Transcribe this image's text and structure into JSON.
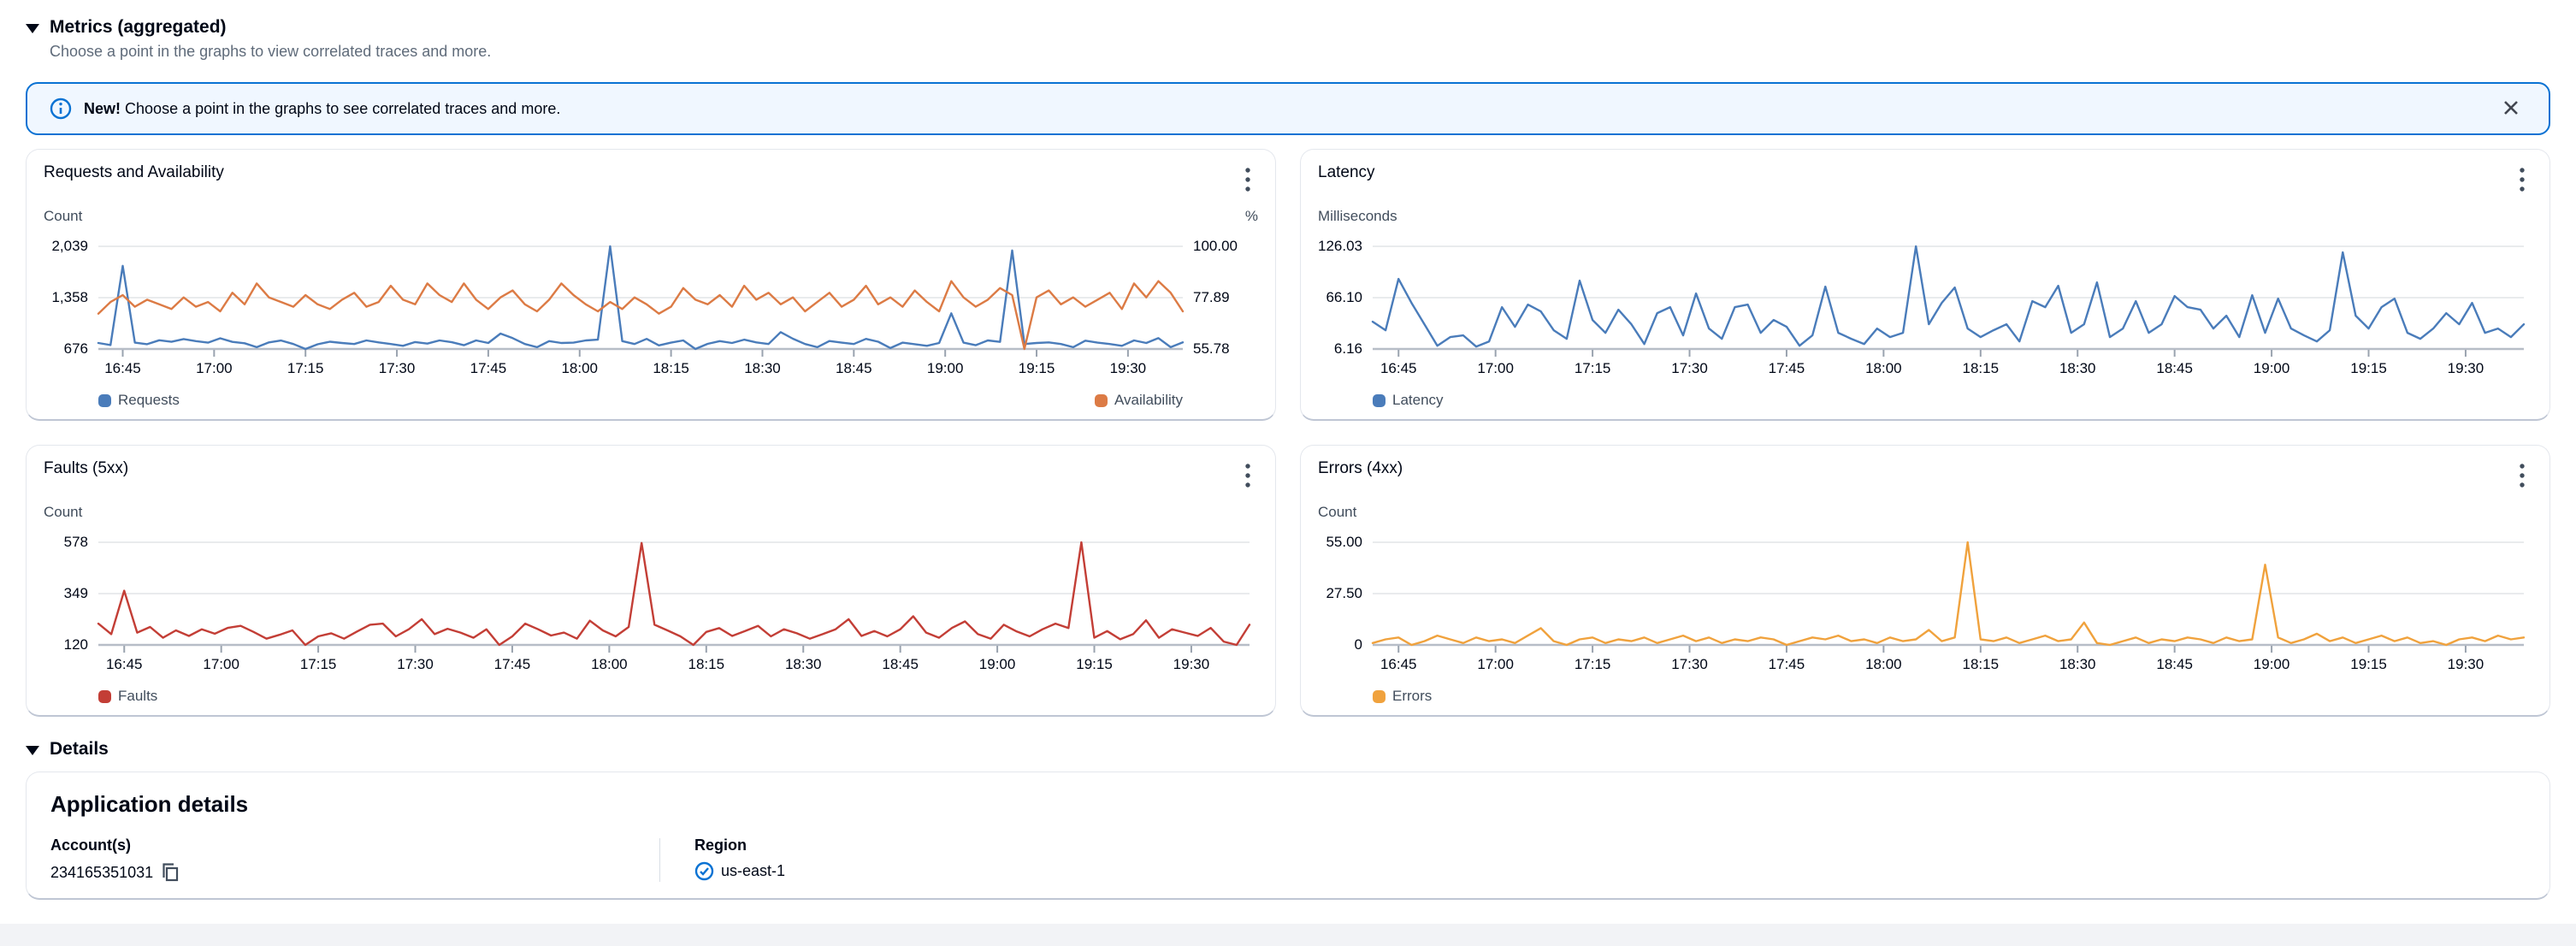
{
  "metrics_section": {
    "title": "Metrics (aggregated)",
    "subtitle": "Choose a point in the graphs to view correlated traces and more."
  },
  "banner": {
    "bold_text": "New!",
    "message": "Choose a point in the graphs to see correlated traces and more.",
    "accent": "#0972d3",
    "background": "#f0f7ff",
    "info_icon": "info-circle",
    "close_icon": "close"
  },
  "details_section": {
    "title": "Details",
    "card_title": "Application details",
    "fields": [
      {
        "label": "Account(s)",
        "value": "234165351031",
        "icon": "copy"
      },
      {
        "label": "Region",
        "value": "us-east-1",
        "icon": "status-check"
      }
    ]
  },
  "chart_data": [
    {
      "type": "line",
      "title": "Requests and Availability",
      "left_axis": {
        "label": "Count",
        "min": 676,
        "max": 2039,
        "ticks": [
          "2,039",
          "1,358",
          "676"
        ]
      },
      "right_axis": {
        "label": "%",
        "min": 55.78,
        "max": 100,
        "ticks": [
          "100.00",
          "77.89",
          "55.78"
        ]
      },
      "x_ticks": [
        "16:45",
        "17:00",
        "17:15",
        "17:30",
        "17:45",
        "18:00",
        "18:15",
        "18:30",
        "18:45",
        "19:00",
        "19:15",
        "19:30"
      ],
      "x_tick_minutes": [
        4,
        19,
        34,
        49,
        64,
        79,
        94,
        109,
        124,
        139,
        154,
        169
      ],
      "x_domain_minutes": 178,
      "interval_minutes": 2,
      "legend_layout": "space-between",
      "series": [
        {
          "name": "Requests",
          "color": "#4a7cba",
          "axis": "left",
          "values": [
            755,
            728,
            1780,
            760,
            740,
            792,
            771,
            808,
            781,
            760,
            818,
            770,
            752,
            700,
            764,
            788,
            742,
            676,
            738,
            772,
            756,
            742,
            790,
            764,
            742,
            718,
            768,
            748,
            790,
            766,
            726,
            790,
            756,
            880,
            820,
            742,
            700,
            780,
            756,
            760,
            790,
            800,
            2039,
            780,
            742,
            810,
            724,
            760,
            790,
            676,
            744,
            780,
            756,
            800,
            764,
            742,
            900,
            812,
            742,
            700,
            782,
            760,
            742,
            810,
            772,
            688,
            760,
            740,
            718,
            756,
            1150,
            760,
            726,
            790,
            770,
            1985,
            742,
            756,
            764,
            742,
            700,
            786,
            760,
            742,
            718,
            790,
            756,
            820,
            700,
            764
          ]
        },
        {
          "name": "Availability",
          "color": "#dc7b45",
          "axis": "right",
          "values": [
            71,
            76,
            79,
            74,
            77,
            75,
            73,
            78,
            74,
            76,
            72,
            80,
            75,
            84,
            78,
            76,
            74,
            79,
            75,
            73,
            77,
            80,
            74,
            76,
            83,
            77,
            75,
            84,
            79,
            76,
            84,
            77,
            73,
            78,
            81,
            75,
            72,
            77,
            84,
            79,
            75,
            72,
            76,
            73,
            78,
            75,
            71,
            74,
            82,
            77,
            75,
            79,
            74,
            83,
            77,
            80,
            75,
            78,
            72,
            76,
            80,
            74,
            77,
            83,
            75,
            78,
            74,
            81,
            76,
            72,
            85,
            78,
            74,
            77,
            82,
            79,
            55.78,
            78,
            81,
            75,
            78,
            74,
            77,
            80,
            73,
            84,
            78,
            85,
            80,
            72
          ]
        }
      ]
    },
    {
      "type": "line",
      "title": "Latency",
      "left_axis": {
        "label": "Milliseconds",
        "min": 6.16,
        "max": 126.03,
        "ticks": [
          "126.03",
          "66.10",
          "6.16"
        ]
      },
      "x_ticks": [
        "16:45",
        "17:00",
        "17:15",
        "17:30",
        "17:45",
        "18:00",
        "18:15",
        "18:30",
        "18:45",
        "19:00",
        "19:15",
        "19:30"
      ],
      "x_tick_minutes": [
        4,
        19,
        34,
        49,
        64,
        79,
        94,
        109,
        124,
        139,
        154,
        169
      ],
      "x_domain_minutes": 178,
      "interval_minutes": 2,
      "legend_layout": "flex-start",
      "series": [
        {
          "name": "Latency",
          "color": "#4a7cba",
          "axis": "left",
          "values": [
            38,
            28,
            88,
            60,
            35,
            10,
            20,
            22,
            9,
            15,
            55,
            32,
            58,
            50,
            28,
            18,
            86,
            40,
            25,
            52,
            35,
            12,
            48,
            55,
            22,
            71,
            30,
            18,
            55,
            58,
            25,
            40,
            32,
            10,
            22,
            79,
            25,
            18,
            12,
            30,
            20,
            25,
            126.03,
            35,
            60,
            78,
            30,
            20,
            28,
            35,
            15,
            62,
            55,
            80,
            25,
            35,
            84,
            20,
            30,
            62,
            25,
            35,
            68,
            55,
            52,
            30,
            45,
            20,
            69,
            25,
            65,
            30,
            22,
            15,
            28,
            119,
            45,
            30,
            55,
            65,
            25,
            18,
            30,
            48,
            35,
            60,
            25,
            30,
            20,
            35
          ]
        }
      ]
    },
    {
      "type": "line",
      "title": "Faults (5xx)",
      "left_axis": {
        "label": "Count",
        "min": 120,
        "max": 578,
        "ticks": [
          "578",
          "349",
          "120"
        ]
      },
      "x_ticks": [
        "16:45",
        "17:00",
        "17:15",
        "17:30",
        "17:45",
        "18:00",
        "18:15",
        "18:30",
        "18:45",
        "19:00",
        "19:15",
        "19:30"
      ],
      "x_tick_minutes": [
        4,
        19,
        34,
        49,
        64,
        79,
        94,
        109,
        124,
        139,
        154,
        169
      ],
      "x_domain_minutes": 178,
      "interval_minutes": 2,
      "legend_layout": "flex-start",
      "series": [
        {
          "name": "Faults",
          "color": "#c33e36",
          "axis": "left",
          "values": [
            215,
            168,
            362,
            175,
            200,
            152,
            185,
            160,
            190,
            170,
            196,
            205,
            178,
            148,
            165,
            185,
            120,
            158,
            172,
            148,
            180,
            210,
            215,
            158,
            190,
            235,
            168,
            192,
            175,
            152,
            190,
            120,
            158,
            215,
            190,
            162,
            175,
            148,
            228,
            185,
            158,
            200,
            575,
            210,
            185,
            158,
            120,
            178,
            195,
            160,
            182,
            205,
            158,
            190,
            172,
            148,
            168,
            190,
            235,
            160,
            182,
            158,
            190,
            248,
            175,
            152,
            196,
            225,
            168,
            148,
            210,
            180,
            158,
            190,
            215,
            195,
            578,
            152,
            182,
            145,
            168,
            230,
            152,
            190,
            175,
            160,
            196,
            135,
            120,
            210
          ]
        }
      ]
    },
    {
      "type": "line",
      "title": "Errors (4xx)",
      "left_axis": {
        "label": "Count",
        "min": 0,
        "max": 55,
        "ticks": [
          "55.00",
          "27.50",
          "0"
        ]
      },
      "x_ticks": [
        "16:45",
        "17:00",
        "17:15",
        "17:30",
        "17:45",
        "18:00",
        "18:15",
        "18:30",
        "18:45",
        "19:00",
        "19:15",
        "19:30"
      ],
      "x_tick_minutes": [
        4,
        19,
        34,
        49,
        64,
        79,
        94,
        109,
        124,
        139,
        154,
        169
      ],
      "x_domain_minutes": 178,
      "interval_minutes": 2,
      "legend_layout": "flex-start",
      "series": [
        {
          "name": "Errors",
          "color": "#f0a23d",
          "axis": "left",
          "values": [
            1,
            3,
            4,
            0,
            2,
            5,
            3,
            1,
            4,
            2,
            3,
            1,
            5,
            9,
            2,
            0,
            3,
            4,
            1,
            3,
            2,
            4,
            1,
            3,
            5,
            2,
            4,
            1,
            3,
            2,
            4,
            3,
            0,
            2,
            4,
            3,
            5,
            2,
            3,
            1,
            4,
            2,
            3,
            8,
            2,
            4,
            55,
            3,
            2,
            4,
            1,
            3,
            5,
            2,
            3,
            12,
            1,
            0,
            2,
            4,
            1,
            3,
            2,
            4,
            3,
            1,
            4,
            2,
            3,
            43,
            4,
            1,
            3,
            6,
            2,
            4,
            1,
            3,
            5,
            2,
            4,
            1,
            2,
            0,
            3,
            4,
            2,
            5,
            3,
            4
          ]
        }
      ]
    }
  ]
}
